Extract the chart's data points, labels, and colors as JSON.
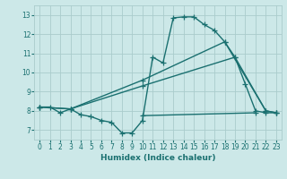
{
  "background_color": "#cce8e8",
  "grid_color": "#aacccc",
  "line_color": "#1a7070",
  "marker": "+",
  "markersize": 4,
  "linewidth": 1.0,
  "xlabel": "Humidex (Indice chaleur)",
  "xlim": [
    -0.5,
    23.5
  ],
  "ylim": [
    6.5,
    13.5
  ],
  "xticks": [
    0,
    1,
    2,
    3,
    4,
    5,
    6,
    7,
    8,
    9,
    10,
    11,
    12,
    13,
    14,
    15,
    16,
    17,
    18,
    19,
    20,
    21,
    22,
    23
  ],
  "yticks": [
    7,
    8,
    9,
    10,
    11,
    12,
    13
  ],
  "lines": [
    {
      "x": [
        0,
        1,
        2,
        3,
        4,
        5,
        6,
        7,
        8,
        9,
        10,
        11,
        12,
        13,
        14,
        15,
        16,
        17,
        18,
        19,
        20,
        21,
        22,
        23
      ],
      "y": [
        8.2,
        8.2,
        7.9,
        8.1,
        7.8,
        7.7,
        7.5,
        7.4,
        6.85,
        6.85,
        7.5,
        10.8,
        10.5,
        12.85,
        12.9,
        12.9,
        12.5,
        12.2,
        11.6,
        10.8,
        9.4,
        8.0,
        7.9,
        7.9
      ]
    },
    {
      "x": [
        0,
        3,
        10,
        18,
        22,
        23
      ],
      "y": [
        8.2,
        8.1,
        9.6,
        11.6,
        8.0,
        7.9
      ]
    },
    {
      "x": [
        0,
        3,
        10,
        19,
        22,
        23
      ],
      "y": [
        8.2,
        8.1,
        9.3,
        10.8,
        8.0,
        7.9
      ]
    },
    {
      "x": [
        10,
        21
      ],
      "y": [
        7.75,
        7.9
      ]
    }
  ]
}
